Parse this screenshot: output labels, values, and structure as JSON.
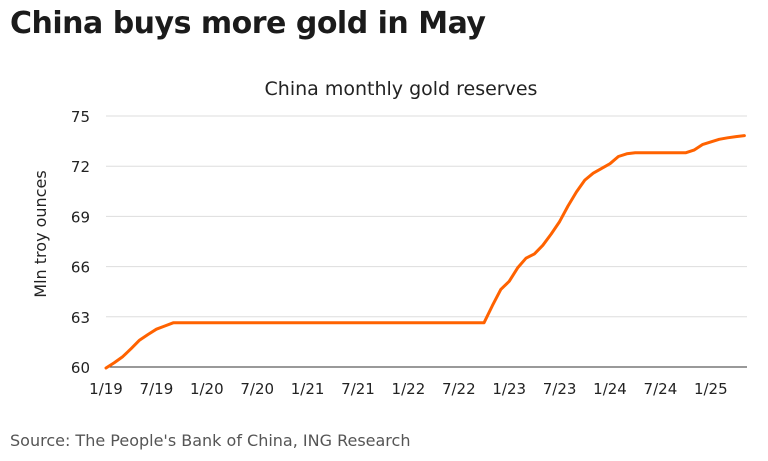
{
  "headline": "China buys more gold in May",
  "source": "Source: The People's Bank of China, ING Research",
  "colors": {
    "series": "#ff6200",
    "grid": "#dddddd",
    "axis": "#333333"
  },
  "chart_data": {
    "type": "line",
    "title": "China monthly gold reserves",
    "xlabel": "",
    "ylabel": "Mln troy ounces",
    "ylim": [
      60,
      75
    ],
    "yticks": [
      60,
      63,
      66,
      69,
      72,
      75
    ],
    "grid": true,
    "x_tick_labels": [
      "1/19",
      "7/19",
      "1/20",
      "7/20",
      "1/21",
      "7/21",
      "1/22",
      "7/22",
      "1/23",
      "7/23",
      "1/24",
      "7/24",
      "1/25"
    ],
    "series": [
      {
        "x": [
          "1/19",
          "2/19",
          "3/19",
          "4/19",
          "5/19",
          "6/19",
          "7/19",
          "8/19",
          "9/19",
          "10/19",
          "11/19",
          "12/19",
          "1/20",
          "2/20",
          "3/20",
          "4/20",
          "5/20",
          "6/20",
          "7/20",
          "8/20",
          "9/20",
          "10/20",
          "11/20",
          "12/20",
          "1/21",
          "2/21",
          "3/21",
          "4/21",
          "5/21",
          "6/21",
          "7/21",
          "8/21",
          "9/21",
          "10/21",
          "11/21",
          "12/21",
          "1/22",
          "2/22",
          "3/22",
          "4/22",
          "5/22",
          "6/22",
          "7/22",
          "8/22",
          "9/22",
          "10/22",
          "11/22",
          "12/22",
          "1/23",
          "2/23",
          "3/23",
          "4/23",
          "5/23",
          "6/23",
          "7/23",
          "8/23",
          "9/23",
          "10/23",
          "11/23",
          "12/23",
          "1/24",
          "2/24",
          "3/24",
          "4/24",
          "5/24",
          "6/24",
          "7/24",
          "8/24",
          "9/24",
          "10/24",
          "11/24",
          "12/24",
          "1/25",
          "2/25",
          "3/25",
          "4/25",
          "5/25"
        ],
        "values": [
          59.94,
          60.26,
          60.62,
          61.1,
          61.61,
          61.94,
          62.26,
          62.45,
          62.64,
          62.64,
          62.64,
          62.64,
          62.64,
          62.64,
          62.64,
          62.64,
          62.64,
          62.64,
          62.64,
          62.64,
          62.64,
          62.64,
          62.64,
          62.64,
          62.64,
          62.64,
          62.64,
          62.64,
          62.64,
          62.64,
          62.64,
          62.64,
          62.64,
          62.64,
          62.64,
          62.64,
          62.64,
          62.64,
          62.64,
          62.64,
          62.64,
          62.64,
          62.64,
          62.64,
          62.64,
          62.64,
          63.67,
          64.64,
          65.12,
          65.92,
          66.5,
          66.76,
          67.27,
          67.95,
          68.69,
          69.62,
          70.46,
          71.17,
          71.58,
          71.87,
          72.15,
          72.58,
          72.74,
          72.8,
          72.8,
          72.8,
          72.8,
          72.8,
          72.8,
          72.8,
          72.96,
          73.29,
          73.45,
          73.61,
          73.7,
          73.77,
          73.83
        ]
      }
    ]
  }
}
